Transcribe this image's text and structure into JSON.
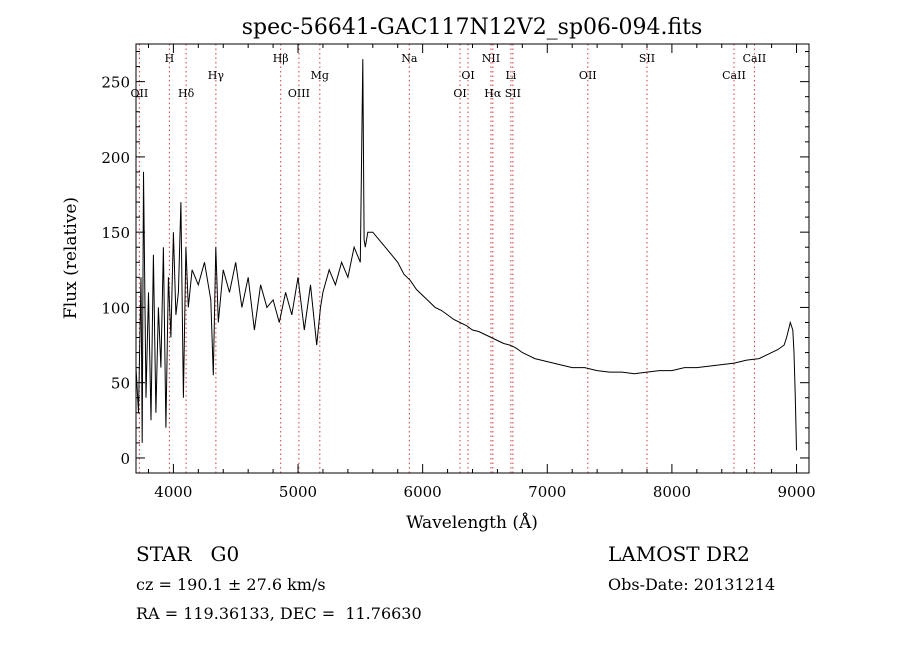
{
  "chart_data": {
    "type": "line",
    "title": "spec-56641-GAC117N12V2_sp06-094.fits",
    "xlabel": "Wavelength (Å)",
    "ylabel": "Flux (relative)",
    "xlim": [
      3700,
      9100
    ],
    "ylim": [
      -10,
      275
    ],
    "xticks": [
      4000,
      5000,
      6000,
      7000,
      8000,
      9000
    ],
    "yticks": [
      0,
      50,
      100,
      150,
      200,
      250
    ],
    "grid": false,
    "line_markers": [
      {
        "label": "OII",
        "x": 3727,
        "row": 3
      },
      {
        "label": "H",
        "x": 3968,
        "row": 1
      },
      {
        "label": "Hδ",
        "x": 4102,
        "row": 3
      },
      {
        "label": "Hγ",
        "x": 4341,
        "row": 2
      },
      {
        "label": "Hβ",
        "x": 4861,
        "row": 1
      },
      {
        "label": "OIII",
        "x": 5007,
        "row": 3
      },
      {
        "label": "Mg",
        "x": 5175,
        "row": 2
      },
      {
        "label": "Na",
        "x": 5893,
        "row": 1
      },
      {
        "label": "OI",
        "x": 6300,
        "row": 3
      },
      {
        "label": "OI",
        "x": 6364,
        "row": 2
      },
      {
        "label": "NII",
        "x": 6548,
        "row": 1
      },
      {
        "label": "Hα",
        "x": 6563,
        "row": 3
      },
      {
        "label": "Li",
        "x": 6708,
        "row": 2
      },
      {
        "label": "SII",
        "x": 6724,
        "row": 3
      },
      {
        "label": "OII",
        "x": 7325,
        "row": 2
      },
      {
        "label": "SII",
        "x": 7800,
        "row": 1
      },
      {
        "label": "CaII",
        "x": 8498,
        "row": 2
      },
      {
        "label": "CaII",
        "x": 8662,
        "row": 1
      }
    ],
    "series": [
      {
        "x": [
          3700,
          3720,
          3740,
          3750,
          3760,
          3780,
          3800,
          3820,
          3840,
          3860,
          3880,
          3900,
          3920,
          3940,
          3960,
          3980,
          4000,
          4020,
          4040,
          4060,
          4080,
          4100,
          4120,
          4150,
          4200,
          4250,
          4300,
          4320,
          4340,
          4360,
          4400,
          4450,
          4500,
          4550,
          4600,
          4650,
          4700,
          4750,
          4800,
          4850,
          4900,
          4950,
          5000,
          5050,
          5100,
          5150,
          5180,
          5200,
          5250,
          5300,
          5350,
          5400,
          5450,
          5500,
          5520,
          5530,
          5540,
          5560,
          5600,
          5650,
          5700,
          5750,
          5800,
          5850,
          5900,
          5950,
          6000,
          6050,
          6100,
          6150,
          6200,
          6250,
          6300,
          6350,
          6400,
          6450,
          6500,
          6550,
          6600,
          6650,
          6700,
          6750,
          6800,
          6850,
          6900,
          7000,
          7100,
          7200,
          7300,
          7400,
          7500,
          7600,
          7700,
          7800,
          7900,
          8000,
          8100,
          8200,
          8300,
          8400,
          8500,
          8600,
          8700,
          8800,
          8850,
          8900,
          8920,
          8950,
          8970,
          8980,
          8990,
          9000
        ],
        "y": [
          60,
          30,
          120,
          10,
          190,
          40,
          110,
          25,
          135,
          30,
          100,
          60,
          140,
          20,
          120,
          80,
          150,
          95,
          110,
          170,
          40,
          140,
          100,
          125,
          115,
          130,
          105,
          55,
          140,
          90,
          125,
          110,
          130,
          100,
          120,
          85,
          115,
          100,
          105,
          90,
          110,
          95,
          120,
          85,
          115,
          75,
          100,
          110,
          125,
          115,
          130,
          120,
          140,
          130,
          265,
          145,
          140,
          150,
          150,
          145,
          140,
          135,
          130,
          122,
          118,
          112,
          108,
          104,
          100,
          98,
          95,
          92,
          90,
          88,
          85,
          84,
          82,
          80,
          78,
          76,
          75,
          73,
          70,
          68,
          66,
          64,
          62,
          60,
          60,
          58,
          57,
          57,
          56,
          57,
          58,
          58,
          60,
          60,
          61,
          62,
          63,
          65,
          66,
          70,
          72,
          75,
          80,
          90,
          85,
          70,
          40,
          5
        ]
      }
    ]
  },
  "info": {
    "object_class": "STAR",
    "subclass": "G0",
    "survey": "LAMOST DR2",
    "cz_label": "cz =",
    "cz_value": "190.1",
    "pm": "±",
    "cz_err": "27.6 km/s",
    "obs_date_label": "Obs-Date:",
    "obs_date": "20131214",
    "ra_label": "RA =",
    "ra": "119.36133,",
    "dec_label": "DEC =",
    "dec": "11.76630"
  }
}
